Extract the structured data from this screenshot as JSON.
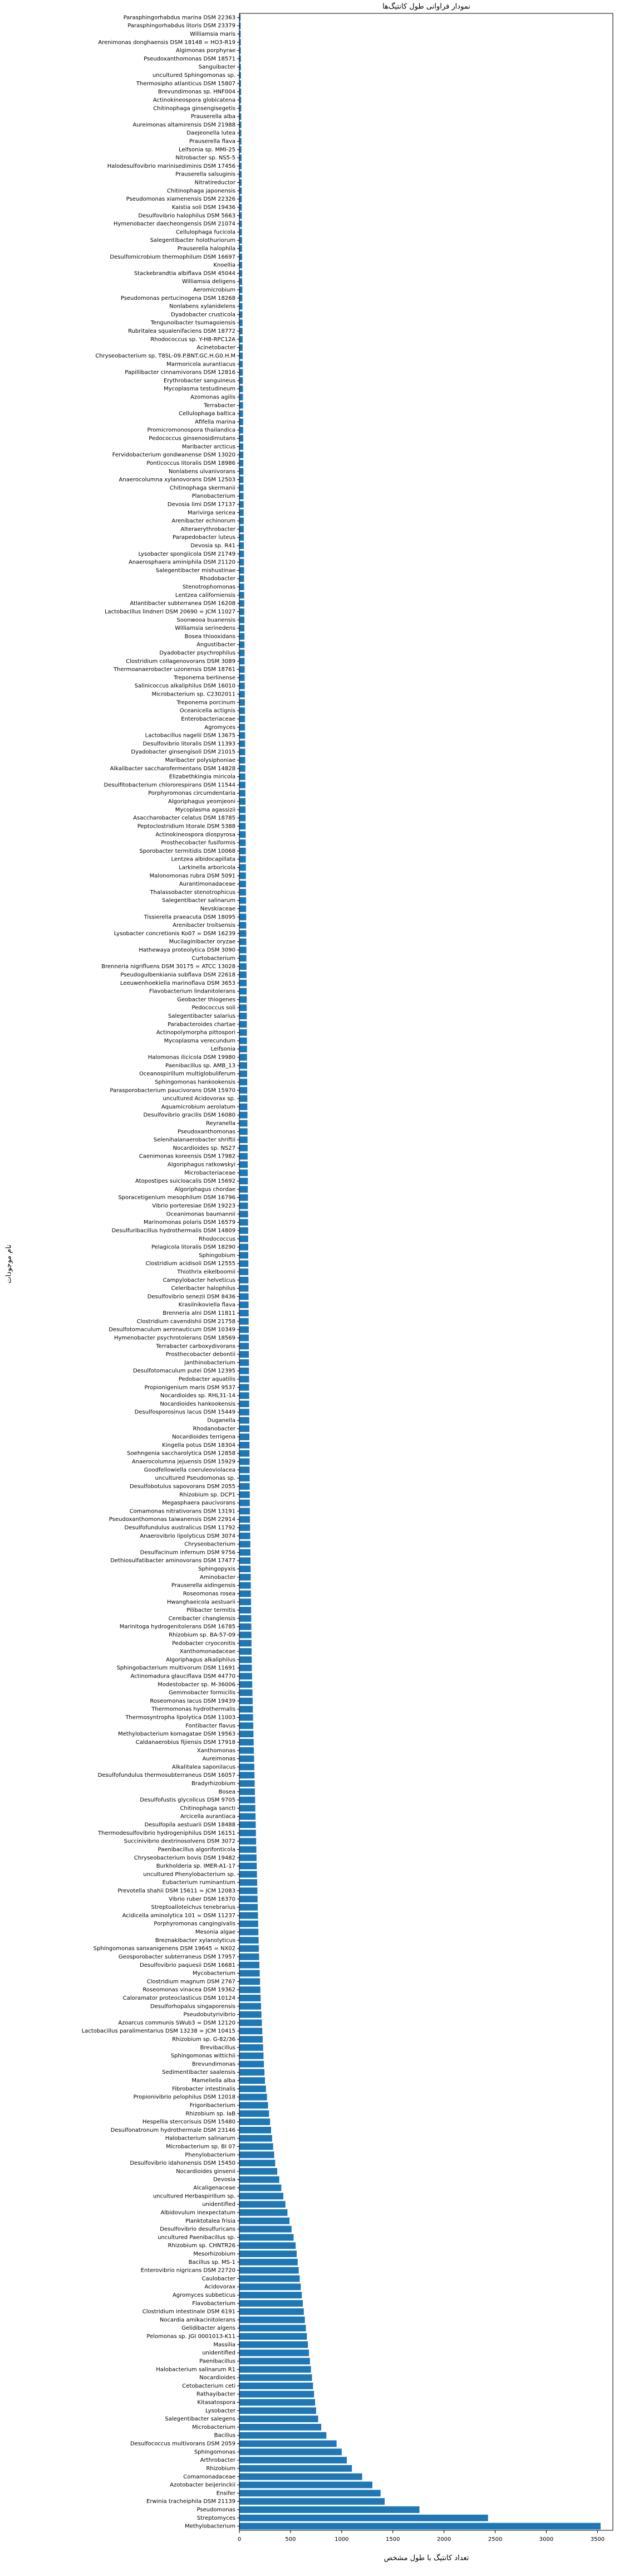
{
  "chart_data": {
    "type": "barh",
    "title": "نمودار فراوانی طول کانتیگ‌ها",
    "xlabel": "تعداد کانتیگ با طول مشخص",
    "ylabel": "نام موجودات",
    "color": "#1f77b4",
    "xlim": [
      0,
      3650
    ],
    "xticks": [
      0,
      500,
      1000,
      1500,
      2000,
      2500,
      3000,
      3500
    ],
    "grid": false,
    "categories": [
      "Parasphingorhabdus marina DSM 22363",
      "Parasphingorhabdus litoris DSM 23379",
      "Williamsia maris",
      "Arenimonas donghaensis DSM 18148 = HO3-R19",
      "Algimonas porphyrae",
      "Pseudoxanthomonas DSM 18571",
      "Sanguibacter",
      "uncultured Sphingomonas sp.",
      "Thermosipho atlanticus DSM 15807",
      "Brevundimonas sp. HNF004",
      "Actinokineospora globicatena",
      "Chitinophaga ginsengisegetis",
      "Prauserella alba",
      "Aureimonas altamirensis DSM 21988",
      "Daejeonella lutea",
      "Prauserella flava",
      "Leifsonia sp. MMI-25",
      "Nitrobacter sp. NS5-5",
      "Halodesulfovibrio marinisediminis DSM 17456",
      "Prauserella salsuginis",
      "Nitratireductor",
      "Chitinophaga japonensis",
      "Pseudomonas xiamenensis DSM 22326",
      "Kaistia soli DSM 19436",
      "Desulfovibrio halophilus DSM 5663",
      "Hymenobacter daecheongensis DSM 21074",
      "Cellulophaga fucicola",
      "Salegentibacter holothuriorum",
      "Prauserella halophila",
      "Desulfomicrobium thermophilum DSM 16697",
      "Knoellia",
      "Stackebrandtia albiflava DSM 45044",
      "Williamsia deligens",
      "Aeromicrobium",
      "Pseudomonas pertucinogena DSM 18268",
      "Nonlabens xylanidelens",
      "Dyadobacter crusticola",
      "Tengunoibacter tsumagoiensis",
      "Rubritalea squalenifaciens DSM 18772",
      "Rhodococcus sp. Y-H8-RPC12A",
      "Acinetobacter",
      "Chryseobacterium sp. T8SL-09.P.BNT.GC.H.G0.H.M",
      "Marmoricola aurantiacus",
      "Papillibacter cinnamivorans DSM 12816",
      "Erythrobacter sanguineus",
      "Mycoplasma testudineum",
      "Azomonas agilis",
      "Terrabacter",
      "Cellulophaga baltica",
      "Afifella marina",
      "Promicromonospora thailandica",
      "Pedococcus ginsenosidimutans",
      "Maribacter arcticus",
      "Fervidobacterium gondwanense DSM 13020",
      "Ponticoccus litoralis DSM 18986",
      "Nonlabens ulvanivorans",
      "Anaerocolumna xylanovorans DSM 12503",
      "Chitinophaga skermanii",
      "Planobacterium",
      "Devosia limi DSM 17137",
      "Marivirga sericea",
      "Arenibacter echinorum",
      "Alteraerythrobacter",
      "Parapedobacter luteus",
      "Devosia sp. R41",
      "Lysobacter spongiicola DSM 21749",
      "Anaerosphaera aminiphila DSM 21120",
      "Salegentibacter mishustinae",
      "Rhodobacter",
      "Stenotrophomonas",
      "Lentzea californiensis",
      "Atlantibacter subterranea DSM 16208",
      "Lactobacillus lindneri DSM 20690 = JCM 11027",
      "Soonwooa buanensis",
      "Williamsia serinedens",
      "Bosea thiooxidans",
      "Angustibacter",
      "Dyadobacter psychrophilus",
      "Clostridium collagenovorans DSM 3089",
      "Thermoanaerobacter uzonensis DSM 18761",
      "Treponema berlinense",
      "Salinicoccus alkaliphilus DSM 16010",
      "Microbacterium sp. C2302011",
      "Treponema porcinum",
      "Oceanicella actignis",
      "Enterobacteriaceae",
      "Agromyces",
      "Lactobacillus nagelii DSM 13675",
      "Desulfovibrio litoralis DSM 11393",
      "Dyadobacter ginsengisoli DSM 21015",
      "Maribacter polysiphoniae",
      "Alkalibacter saccharofermentans DSM 14828",
      "Elizabethkingia miricola",
      "Desulfitobacterium chlororespirans DSM 11544",
      "Porphyromonas circumdentaria",
      "Algoriphagus yeomjeoni",
      "Mycoplasma agassizii",
      "Asaccharobacter celatus DSM 18785",
      "Peptoclostridium litorale DSM 5388",
      "Actinokineospora diospyrosa",
      "Prosthecobacter fusiformis",
      "Sporobacter termitidis DSM 10068",
      "Lentzea albidocapillata",
      "Larkinella arboricola",
      "Malonomonas rubra DSM 5091",
      "Aurantimonadaceae",
      "Thalassobacter stenotrophicus",
      "Salegentibacter salinarum",
      "Nevskiaceae",
      "Tissierella praeacuta DSM 18095",
      "Arenibacter troitsensis",
      "Lysobacter concretionis Ko07 = DSM 16239",
      "Mucilaginibacter oryzae",
      "Hathewaya proteolytica DSM 3090",
      "Curtobacterium",
      "Brenneria nigrifluens DSM 30175 = ATCC 13028",
      "Pseudogulbenkiania subflava DSM 22618",
      "Leeuwenhoekiella marinoflava DSM 3653",
      "Flavobacterium lindanitolerans",
      "Geobacter thiogenes",
      "Pedococcus soli",
      "Salegentibacter salarius",
      "Parabacteroides chartae",
      "Actinopolymorpha pittospori",
      "Mycoplasma verecundum",
      "Leifsonia",
      "Halomonas ilicicola DSM 19980",
      "Paenibacillus sp. AMB_13",
      "Oceanospirillum multiglobuliferum",
      "Sphingomonas hankookensis",
      "Parasporobacterium paucivorans DSM 15970",
      "uncultured Acidovorax sp.",
      "Aquamicrobium aerolatum",
      "Desulfovibrio gracilis DSM 16080",
      "Reyranella",
      "Pseudoxanthomonas",
      "Selenihalanaerobacter shriftii",
      "Nocardioides sp. NS27",
      "Caenimonas koreensis DSM 17982",
      "Algoriphagus ratkowskyi",
      "Microbacteriaceae",
      "Atopostipes suicloacalis DSM 15692",
      "Algoriphagus chordae",
      "Sporacetigenium mesophilum DSM 16796",
      "Vibrio porteresiae DSM 19223",
      "Oceanimonas baumannii",
      "Marinomonas polaris DSM 16579",
      "Desulfuribacillus hydrothermalis DSM 14809",
      "Rhodococcus",
      "Pelagicola litoralis DSM 18290",
      "Sphingobium",
      "Clostridium acidisoli DSM 12555",
      "Thiothrix eikelboomii",
      "Campylobacter helveticus",
      "Celeribacter halophilus",
      "Desulfovibrio senezii DSM 8436",
      "Krasilnikoviella flava",
      "Brenneria alni DSM 11811",
      "Clostridium cavendishii DSM 21758",
      "Desulfotomaculum aeronauticum DSM 10349",
      "Hymenobacter psychrotolerans DSM 18569",
      "Terrabacter carboxydivorans",
      "Prosthecobacter debontii",
      "Janthinobacterium",
      "Desulfotomaculum putei DSM 12395",
      "Pedobacter aquatilis",
      "Propionigenium maris DSM 9537",
      "Nocardioides sp. RHL31-14",
      "Nocardioides hankookensis",
      "Desulfosporosinus lacus DSM 15449",
      "Duganella",
      "Rhodanobacter",
      "Nocardioides terrigena",
      "Kingella potus DSM 18304",
      "Soehngenia saccharolytica DSM 12858",
      "Anaerocolumna jejuensis DSM 15929",
      "Goodfellowiella coeruleoviolacea",
      "uncultured Pseudomonas sp.",
      "Desulfobotulus sapovorans DSM 2055",
      "Rhizobium sp. DCP1",
      "Megasphaera paucivorans",
      "Comamonas nitrativorans DSM 13191",
      "Pseudoxanthomonas taiwanensis DSM 22914",
      "Desulfofundulus australicus DSM 11792",
      "Anaerovibrio lipolyticus DSM 3074",
      "Chryseobacterium",
      "Desulfacinum infernum DSM 9756",
      "Dethiosulfatibacter aminovorans DSM 17477",
      "Sphingopyxis",
      "Aminobacter",
      "Prauserella aidingensis",
      "Roseomonas rosea",
      "Hwanghaeicola aestuarii",
      "Pilibacter termitis",
      "Cereibacter changlensis",
      "Marinitoga hydrogenitolerans DSM 16785",
      "Rhizobium sp. BA-57-09",
      "Pedobacter cryoconitis",
      "Xanthomonadaceae",
      "Algoriphagus alkaliphilus",
      "Sphingobacterium multivorum DSM 11691",
      "Actinomadura glauciflava DSM 44770",
      "Modestobacter sp. M-36006",
      "Gemmobacter formicilis",
      "Roseomonas lacus DSM 19439",
      "Thermomonas hydrothermalis",
      "Thermosyntropha lipolytica DSM 11003",
      "Fontibacter flavus",
      "Methylobacterium komagatae DSM 19563",
      "Caldanaerobius fijiensis DSM 17918",
      "Xanthomonas",
      "Aureimonas",
      "Alkalitalea saponilacus",
      "Desulfofundulus thermosubterraneus DSM 16057",
      "Bradyrhizobium",
      "Bosea",
      "Desulfofustis glycolicus DSM 9705",
      "Chitinophaga sancti",
      "Arcicella aurantiaca",
      "Desulfopila aestuarii DSM 18488",
      "Thermodesulfovibrio hydrogeniphilus DSM 16151",
      "Succinivibrio dextrinosolvens DSM 3072",
      "Paenibacillus algorifonticola",
      "Chryseobacterium bovis DSM 19482",
      "Burkholderia sp. IMER-A1-17",
      "uncultured Phenylobacterium sp.",
      "Eubacterium ruminantium",
      "Prevotella shahii DSM 15611 = JCM 12083",
      "Vibrio ruber DSM 16370",
      "Streptoalloteichus tenebrarius",
      "Acidicella aminolytica 101 = DSM 11237",
      "Porphyromonas cangingivalis",
      "Mesonia algae",
      "Breznakibacter xylanolyticus",
      "Sphingomonas sanxanigenens DSM 19645 = NX02",
      "Geosporobacter subterraneus DSM 17957",
      "Desulfovibrio paquesii DSM 16681",
      "Mycobacterium",
      "Clostridium magnum DSM 2767",
      "Roseomonas vinacea DSM 19362",
      "Caloramator proteoclasticus DSM 10124",
      "Desulforhopalus singaporensis",
      "Pseudobutyrivibrio",
      "Azoarcus communis SWub3 = DSM 12120",
      "Lactobacillus paralimentarius DSM 13238 = JCM 10415",
      "Rhizobium sp. G-82/36",
      "Brevibacillus",
      "Sphingomonas wittichii",
      "Brevundimonas",
      "Sedimentibacter saalensis",
      "Mameliella alba",
      "Fibrobacter intestinalis",
      "Propionivibrio pelophilus DSM 12018",
      "Frigoribacterium",
      "Rhizobium sp. IaB",
      "Hespellia stercorisuis DSM 15480",
      "Desulfonatronum hydrothermale DSM 23146",
      "Halobacterium salinarum",
      "Microbacterium sp. BI 07",
      "Phenylobacterium",
      "Desulfovibrio idahonensis DSM 15450",
      "Nocardioides ginsenii",
      "Devosia",
      "Alcaligenaceae",
      "uncultured Herbaspirillum sp.",
      "unidentified",
      "Albidovulum inexpectatum",
      "Planktotalea frisia",
      "Desulfovibrio desulfuricans",
      "uncultured Paenibacillus sp.",
      "Rhizobium sp. CHNTR26",
      "Mesorhizobium",
      "Bacillus sp. MS-1",
      "Enterovibrio nigricans DSM 22720",
      "Caulobacter",
      "Acidovorax",
      "Agromyces subbeticus",
      "Flavobacterium",
      "Clostridium intestinale DSM 6191",
      "Nocardia amikacinitolerans",
      "Gelidibacter algens",
      "Pelomonas sp. JGI 0001013-K11",
      "Massilia",
      "unidentified",
      "Paenibacillus",
      "Halobacterium salinarum R1",
      "Nocardioides",
      "Cetobacterium ceti",
      "Rathayibacter",
      "Kitasatospora",
      "Lysobacter",
      "Salegentibacter salegens",
      "Microbacterium",
      "Bacillus",
      "Desulfococcus multivorans DSM 2059",
      "Sphingomonas",
      "Arthrobacter",
      "Rhizobium",
      "Comamonadaceae",
      "Azotobacter beijerinckii",
      "Ensifer",
      "Erwinia tracheiphila DSM 21139",
      "Pseudomonas",
      "Streptomyces",
      "Methylobacterium"
    ],
    "values": [
      12,
      13,
      13,
      14,
      14,
      15,
      15,
      16,
      16,
      17,
      17,
      18,
      18,
      19,
      19,
      20,
      20,
      21,
      21,
      22,
      22,
      23,
      23,
      24,
      24,
      25,
      25,
      26,
      26,
      27,
      27,
      28,
      28,
      29,
      29,
      30,
      30,
      31,
      31,
      32,
      32,
      33,
      33,
      34,
      34,
      35,
      35,
      36,
      36,
      37,
      37,
      38,
      38,
      39,
      39,
      40,
      40,
      41,
      41,
      42,
      42,
      43,
      43,
      44,
      44,
      45,
      45,
      46,
      46,
      47,
      47,
      48,
      48,
      49,
      49,
      50,
      50,
      51,
      51,
      52,
      52,
      53,
      53,
      54,
      54,
      55,
      55,
      56,
      56,
      57,
      57,
      58,
      58,
      59,
      59,
      60,
      60,
      61,
      61,
      62,
      62,
      63,
      63,
      64,
      64,
      65,
      65,
      66,
      66,
      67,
      67,
      68,
      68,
      69,
      69,
      70,
      70,
      71,
      71,
      72,
      72,
      73,
      73,
      74,
      74,
      75,
      75,
      76,
      76,
      77,
      77,
      78,
      78,
      79,
      79,
      80,
      80,
      81,
      81,
      82,
      82,
      83,
      83,
      84,
      84,
      85,
      85,
      86,
      86,
      87,
      87,
      88,
      88,
      89,
      89,
      90,
      90,
      91,
      91,
      92,
      92,
      93,
      93,
      94,
      94,
      95,
      95,
      96,
      96,
      97,
      97,
      98,
      98,
      99,
      99,
      100,
      100,
      101,
      101,
      102,
      102,
      103,
      104,
      105,
      106,
      107,
      108,
      109,
      110,
      111,
      112,
      113,
      114,
      115,
      116,
      117,
      118,
      119,
      120,
      121,
      122,
      124,
      126,
      128,
      130,
      132,
      134,
      136,
      138,
      140,
      142,
      144,
      146,
      148,
      150,
      152,
      154,
      156,
      158,
      160,
      162,
      164,
      166,
      168,
      170,
      172,
      174,
      176,
      178,
      180,
      182,
      184,
      186,
      188,
      190,
      193,
      196,
      199,
      202,
      205,
      208,
      212,
      216,
      220,
      224,
      228,
      232,
      236,
      240,
      245,
      250,
      260,
      270,
      280,
      290,
      300,
      310,
      320,
      330,
      340,
      350,
      370,
      390,
      410,
      430,
      450,
      470,
      490,
      510,
      530,
      550,
      560,
      570,
      580,
      590,
      600,
      610,
      620,
      630,
      640,
      650,
      660,
      670,
      680,
      690,
      700,
      710,
      720,
      730,
      740,
      750,
      770,
      800,
      850,
      950,
      1000,
      1050,
      1100,
      1200,
      1300,
      1380,
      1420,
      1760,
      2430,
      3530
    ]
  }
}
